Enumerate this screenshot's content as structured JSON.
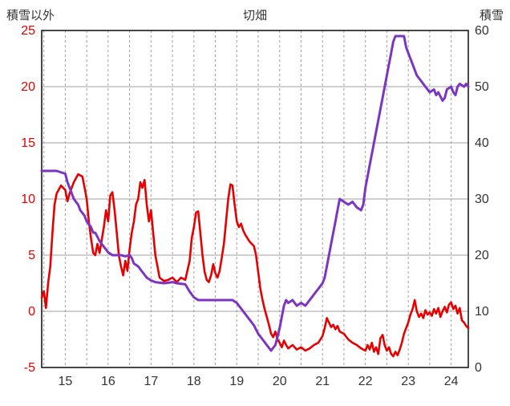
{
  "header": {
    "title": "切畑",
    "left_axis_label": "積雪以外",
    "right_axis_label": "積雪"
  },
  "colors": {
    "red_series": "#e60000",
    "purple_series": "#7b35c1",
    "grid": "#a0a0a0",
    "border": "#1a1a1a",
    "left_tick_text": "#e60000",
    "right_tick_text": "#333333",
    "x_tick_text": "#333333"
  },
  "chart_data": {
    "type": "line",
    "title": "切畑",
    "left_axis": {
      "label": "積雪以外",
      "ylim": [
        -5,
        25
      ],
      "ticks": [
        -5,
        0,
        5,
        10,
        15,
        20,
        25
      ]
    },
    "right_axis": {
      "label": "積雪",
      "ylim": [
        0,
        60
      ],
      "ticks": [
        0,
        10,
        20,
        30,
        40,
        50,
        60
      ]
    },
    "x_range": [
      14.45,
      24.4
    ],
    "x_ticks": [
      15,
      16,
      17,
      18,
      19,
      20,
      21,
      22,
      23,
      24
    ],
    "grid": {
      "vertical_step": 0.5,
      "vertical_dashed": true,
      "horizontal_solid": true
    },
    "legend_position": "none",
    "series": [
      {
        "name": "積雪以外",
        "axis": "left",
        "color": "#e60000",
        "points": [
          [
            14.45,
            1.2
          ],
          [
            14.5,
            1.8
          ],
          [
            14.55,
            0.3
          ],
          [
            14.6,
            2.5
          ],
          [
            14.65,
            4.0
          ],
          [
            14.7,
            7.0
          ],
          [
            14.75,
            9.5
          ],
          [
            14.8,
            10.5
          ],
          [
            14.9,
            11.2
          ],
          [
            15.0,
            10.8
          ],
          [
            15.05,
            9.8
          ],
          [
            15.1,
            10.5
          ],
          [
            15.2,
            11.5
          ],
          [
            15.3,
            12.2
          ],
          [
            15.4,
            12.0
          ],
          [
            15.45,
            11.0
          ],
          [
            15.5,
            10.0
          ],
          [
            15.55,
            8.0
          ],
          [
            15.6,
            6.5
          ],
          [
            15.65,
            5.2
          ],
          [
            15.7,
            5.0
          ],
          [
            15.75,
            6.0
          ],
          [
            15.8,
            5.2
          ],
          [
            15.9,
            7.5
          ],
          [
            15.95,
            9.0
          ],
          [
            16.0,
            8.0
          ],
          [
            16.05,
            10.3
          ],
          [
            16.1,
            10.6
          ],
          [
            16.15,
            9.0
          ],
          [
            16.2,
            7.0
          ],
          [
            16.25,
            5.0
          ],
          [
            16.3,
            4.0
          ],
          [
            16.35,
            3.2
          ],
          [
            16.4,
            4.5
          ],
          [
            16.45,
            3.6
          ],
          [
            16.5,
            5.5
          ],
          [
            16.55,
            7.0
          ],
          [
            16.6,
            8.0
          ],
          [
            16.65,
            9.5
          ],
          [
            16.7,
            10.0
          ],
          [
            16.75,
            11.5
          ],
          [
            16.8,
            11.0
          ],
          [
            16.85,
            11.7
          ],
          [
            16.9,
            9.5
          ],
          [
            16.95,
            8.0
          ],
          [
            17.0,
            9.0
          ],
          [
            17.05,
            7.0
          ],
          [
            17.1,
            5.0
          ],
          [
            17.15,
            4.0
          ],
          [
            17.2,
            3.0
          ],
          [
            17.3,
            2.7
          ],
          [
            17.4,
            2.8
          ],
          [
            17.5,
            3.0
          ],
          [
            17.6,
            2.6
          ],
          [
            17.7,
            3.0
          ],
          [
            17.8,
            2.8
          ],
          [
            17.9,
            4.5
          ],
          [
            17.95,
            6.5
          ],
          [
            18.0,
            7.5
          ],
          [
            18.05,
            8.8
          ],
          [
            18.1,
            8.9
          ],
          [
            18.15,
            7.0
          ],
          [
            18.2,
            5.0
          ],
          [
            18.25,
            3.5
          ],
          [
            18.3,
            2.8
          ],
          [
            18.35,
            2.6
          ],
          [
            18.4,
            3.2
          ],
          [
            18.45,
            4.2
          ],
          [
            18.5,
            3.4
          ],
          [
            18.55,
            3.0
          ],
          [
            18.6,
            3.6
          ],
          [
            18.65,
            4.8
          ],
          [
            18.7,
            6.0
          ],
          [
            18.75,
            8.0
          ],
          [
            18.8,
            10.0
          ],
          [
            18.85,
            11.3
          ],
          [
            18.9,
            11.2
          ],
          [
            18.95,
            9.5
          ],
          [
            19.0,
            8.0
          ],
          [
            19.05,
            7.5
          ],
          [
            19.1,
            7.8
          ],
          [
            19.15,
            7.2
          ],
          [
            19.2,
            6.8
          ],
          [
            19.3,
            6.2
          ],
          [
            19.4,
            5.8
          ],
          [
            19.45,
            5.0
          ],
          [
            19.5,
            3.5
          ],
          [
            19.55,
            2.0
          ],
          [
            19.6,
            1.0
          ],
          [
            19.65,
            0.2
          ],
          [
            19.7,
            -0.5
          ],
          [
            19.75,
            -1.2
          ],
          [
            19.8,
            -2.0
          ],
          [
            19.85,
            -2.3
          ],
          [
            19.9,
            -1.8
          ],
          [
            19.95,
            -2.5
          ],
          [
            20.0,
            -2.8
          ],
          [
            20.05,
            -3.2
          ],
          [
            20.1,
            -2.6
          ],
          [
            20.15,
            -3.0
          ],
          [
            20.2,
            -3.3
          ],
          [
            20.3,
            -3.0
          ],
          [
            20.4,
            -3.4
          ],
          [
            20.5,
            -3.2
          ],
          [
            20.6,
            -3.5
          ],
          [
            20.7,
            -3.3
          ],
          [
            20.8,
            -3.0
          ],
          [
            20.9,
            -2.8
          ],
          [
            21.0,
            -2.2
          ],
          [
            21.05,
            -1.5
          ],
          [
            21.1,
            -0.6
          ],
          [
            21.15,
            -1.0
          ],
          [
            21.2,
            -1.4
          ],
          [
            21.25,
            -1.2
          ],
          [
            21.3,
            -1.6
          ],
          [
            21.35,
            -1.3
          ],
          [
            21.4,
            -1.8
          ],
          [
            21.5,
            -2.0
          ],
          [
            21.6,
            -2.5
          ],
          [
            21.7,
            -2.8
          ],
          [
            21.8,
            -3.0
          ],
          [
            21.9,
            -3.3
          ],
          [
            22.0,
            -3.5
          ],
          [
            22.05,
            -3.0
          ],
          [
            22.1,
            -3.4
          ],
          [
            22.15,
            -2.8
          ],
          [
            22.2,
            -3.6
          ],
          [
            22.25,
            -3.2
          ],
          [
            22.3,
            -3.8
          ],
          [
            22.35,
            -2.4
          ],
          [
            22.4,
            -2.1
          ],
          [
            22.45,
            -3.0
          ],
          [
            22.5,
            -3.5
          ],
          [
            22.55,
            -3.2
          ],
          [
            22.6,
            -3.8
          ],
          [
            22.65,
            -4.0
          ],
          [
            22.7,
            -3.6
          ],
          [
            22.75,
            -3.9
          ],
          [
            22.8,
            -3.4
          ],
          [
            22.85,
            -2.8
          ],
          [
            22.9,
            -2.0
          ],
          [
            23.0,
            -1.0
          ],
          [
            23.05,
            -0.3
          ],
          [
            23.1,
            0.2
          ],
          [
            23.15,
            1.0
          ],
          [
            23.2,
            0.0
          ],
          [
            23.25,
            -0.5
          ],
          [
            23.3,
            -0.2
          ],
          [
            23.35,
            -0.6
          ],
          [
            23.4,
            0.1
          ],
          [
            23.45,
            -0.3
          ],
          [
            23.5,
            -0.1
          ],
          [
            23.55,
            -0.4
          ],
          [
            23.6,
            0.2
          ],
          [
            23.65,
            -0.2
          ],
          [
            23.7,
            0.3
          ],
          [
            23.75,
            -0.5
          ],
          [
            23.8,
            0.0
          ],
          [
            23.85,
            0.4
          ],
          [
            23.9,
            -0.1
          ],
          [
            23.95,
            0.6
          ],
          [
            24.0,
            0.8
          ],
          [
            24.05,
            0.2
          ],
          [
            24.1,
            0.5
          ],
          [
            24.15,
            -0.2
          ],
          [
            24.2,
            0.3
          ],
          [
            24.25,
            -0.8
          ],
          [
            24.3,
            -1.0
          ],
          [
            24.35,
            -1.3
          ],
          [
            24.4,
            -1.5
          ]
        ]
      },
      {
        "name": "積雪",
        "axis": "right",
        "color": "#7b35c1",
        "points": [
          [
            14.45,
            35
          ],
          [
            14.6,
            35
          ],
          [
            14.8,
            35
          ],
          [
            15.0,
            34.5
          ],
          [
            15.05,
            33
          ],
          [
            15.1,
            32
          ],
          [
            15.2,
            30
          ],
          [
            15.3,
            29
          ],
          [
            15.35,
            28
          ],
          [
            15.45,
            27
          ],
          [
            15.5,
            26
          ],
          [
            15.6,
            25
          ],
          [
            15.65,
            24
          ],
          [
            15.7,
            24
          ],
          [
            15.8,
            22.5
          ],
          [
            15.9,
            21.5
          ],
          [
            15.95,
            21
          ],
          [
            16.0,
            20.5
          ],
          [
            16.1,
            20
          ],
          [
            16.3,
            20
          ],
          [
            16.4,
            19.8
          ],
          [
            16.5,
            20
          ],
          [
            16.55,
            19.5
          ],
          [
            16.6,
            18.5
          ],
          [
            16.7,
            18
          ],
          [
            16.8,
            17
          ],
          [
            16.9,
            16
          ],
          [
            17.0,
            15.5
          ],
          [
            17.1,
            15.2
          ],
          [
            17.3,
            15
          ],
          [
            17.5,
            15.2
          ],
          [
            17.6,
            15
          ],
          [
            17.8,
            14.8
          ],
          [
            17.9,
            13.5
          ],
          [
            18.0,
            12.5
          ],
          [
            18.1,
            12
          ],
          [
            18.3,
            12
          ],
          [
            18.6,
            12
          ],
          [
            18.9,
            12
          ],
          [
            19.0,
            11.5
          ],
          [
            19.1,
            10.5
          ],
          [
            19.2,
            9.5
          ],
          [
            19.3,
            8.5
          ],
          [
            19.4,
            7.5
          ],
          [
            19.5,
            6
          ],
          [
            19.6,
            5
          ],
          [
            19.7,
            4
          ],
          [
            19.75,
            3.5
          ],
          [
            19.8,
            3
          ],
          [
            19.85,
            3.5
          ],
          [
            19.9,
            4
          ],
          [
            19.95,
            5.5
          ],
          [
            20.0,
            7
          ],
          [
            20.05,
            9
          ],
          [
            20.1,
            11
          ],
          [
            20.15,
            12
          ],
          [
            20.2,
            11.5
          ],
          [
            20.3,
            12
          ],
          [
            20.4,
            11
          ],
          [
            20.5,
            11.5
          ],
          [
            20.6,
            11
          ],
          [
            20.7,
            12
          ],
          [
            20.8,
            13
          ],
          [
            20.9,
            14
          ],
          [
            21.0,
            15
          ],
          [
            21.05,
            16
          ],
          [
            21.1,
            18
          ],
          [
            21.2,
            22
          ],
          [
            21.3,
            26
          ],
          [
            21.35,
            28
          ],
          [
            21.4,
            30
          ],
          [
            21.5,
            29.5
          ],
          [
            21.6,
            29
          ],
          [
            21.7,
            29.5
          ],
          [
            21.8,
            28.5
          ],
          [
            21.9,
            28
          ],
          [
            21.95,
            29
          ],
          [
            22.0,
            32
          ],
          [
            22.1,
            36
          ],
          [
            22.2,
            40
          ],
          [
            22.3,
            44
          ],
          [
            22.35,
            46
          ],
          [
            22.4,
            48
          ],
          [
            22.5,
            52
          ],
          [
            22.6,
            56
          ],
          [
            22.65,
            58
          ],
          [
            22.7,
            59
          ],
          [
            22.8,
            59
          ],
          [
            22.9,
            59
          ],
          [
            22.95,
            57
          ],
          [
            23.0,
            56
          ],
          [
            23.1,
            54
          ],
          [
            23.2,
            52
          ],
          [
            23.3,
            51
          ],
          [
            23.4,
            50
          ],
          [
            23.5,
            49
          ],
          [
            23.6,
            49.5
          ],
          [
            23.65,
            48.5
          ],
          [
            23.7,
            49
          ],
          [
            23.8,
            47.5
          ],
          [
            23.85,
            48
          ],
          [
            23.9,
            49.5
          ],
          [
            24.0,
            50
          ],
          [
            24.05,
            49
          ],
          [
            24.1,
            48.5
          ],
          [
            24.15,
            50
          ],
          [
            24.2,
            50.5
          ],
          [
            24.3,
            50
          ],
          [
            24.35,
            50.5
          ],
          [
            24.4,
            50
          ]
        ]
      }
    ]
  }
}
